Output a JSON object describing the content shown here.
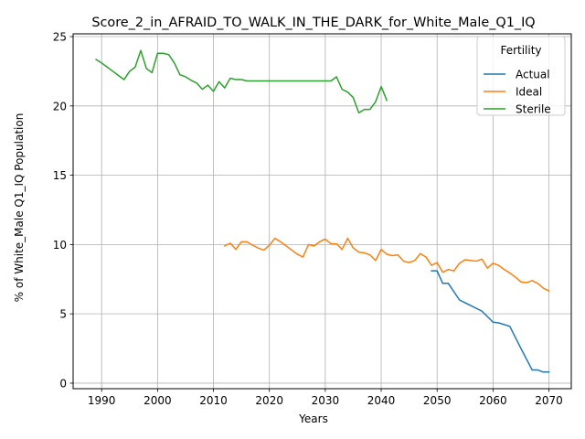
{
  "chart_data": {
    "type": "line",
    "title": "Score_2_in_AFRAID_TO_WALK_IN_THE_DARK_for_White_Male_Q1_IQ",
    "xlabel": "Years",
    "ylabel": "% of White_Male Q1_IQ Population",
    "xlim": [
      1984.9,
      2074.0
    ],
    "ylim": [
      -0.4,
      25.2
    ],
    "xticks": [
      1990,
      2000,
      2010,
      2020,
      2030,
      2040,
      2050,
      2060,
      2070
    ],
    "yticks": [
      0,
      5,
      10,
      15,
      20,
      25
    ],
    "grid": true,
    "legend": {
      "title": "Fertility",
      "placement": "top-right"
    },
    "series": [
      {
        "name": "Actual",
        "color": "#1f77b4",
        "x": [
          2049,
          2050,
          2051,
          2052,
          2054,
          2056,
          2058,
          2060,
          2061,
          2063,
          2065,
          2067,
          2068,
          2069,
          2070
        ],
        "y": [
          8.1,
          8.1,
          7.2,
          7.2,
          6.0,
          5.6,
          5.2,
          4.4,
          4.35,
          4.1,
          2.5,
          0.95,
          0.95,
          0.8,
          0.8
        ]
      },
      {
        "name": "Ideal",
        "color": "#ff7f0e",
        "x": [
          2012,
          2013,
          2014,
          2015,
          2016,
          2017,
          2018,
          2019,
          2020,
          2021,
          2022,
          2023,
          2024,
          2025,
          2026,
          2027,
          2028,
          2029,
          2030,
          2031,
          2032,
          2033,
          2034,
          2035,
          2036,
          2037,
          2038,
          2039,
          2040,
          2041,
          2042,
          2043,
          2044,
          2045,
          2046,
          2047,
          2048,
          2049,
          2050,
          2051,
          2052,
          2053,
          2054,
          2055,
          2056,
          2057,
          2058,
          2059,
          2060,
          2061,
          2062,
          2063,
          2064,
          2065,
          2066,
          2067,
          2068,
          2069,
          2070
        ],
        "y": [
          9.9,
          10.1,
          9.65,
          10.2,
          10.2,
          9.95,
          9.75,
          9.6,
          9.95,
          10.45,
          10.2,
          9.9,
          9.6,
          9.3,
          9.1,
          10.0,
          9.9,
          10.2,
          10.4,
          10.05,
          10.05,
          9.65,
          10.45,
          9.75,
          9.45,
          9.4,
          9.25,
          8.85,
          9.65,
          9.3,
          9.2,
          9.25,
          8.8,
          8.7,
          8.85,
          9.35,
          9.1,
          8.5,
          8.7,
          8.0,
          8.2,
          8.1,
          8.65,
          8.9,
          8.85,
          8.8,
          8.95,
          8.3,
          8.65,
          8.5,
          8.2,
          7.95,
          7.65,
          7.3,
          7.25,
          7.4,
          7.2,
          6.85,
          6.65
        ]
      },
      {
        "name": "Sterile",
        "color": "#2ca02c",
        "x": [
          1989,
          1990,
          1991,
          1992,
          1993,
          1994,
          1995,
          1996,
          1997,
          1998,
          1999,
          2000,
          2001,
          2002,
          2003,
          2004,
          2005,
          2006,
          2007,
          2008,
          2009,
          2010,
          2011,
          2012,
          2013,
          2014,
          2015,
          2016,
          2017,
          2018,
          2019,
          2020,
          2021,
          2022,
          2023,
          2024,
          2025,
          2026,
          2027,
          2028,
          2029,
          2030,
          2031,
          2032,
          2033,
          2034,
          2035,
          2036,
          2037,
          2038,
          2039,
          2040,
          2041
        ],
        "y": [
          23.35,
          23.1,
          22.8,
          22.5,
          22.2,
          21.9,
          22.5,
          22.8,
          24.0,
          22.7,
          22.4,
          23.8,
          23.8,
          23.7,
          23.1,
          22.25,
          22.1,
          21.85,
          21.65,
          21.2,
          21.5,
          21.05,
          21.75,
          21.3,
          22.0,
          21.9,
          21.9,
          21.8,
          21.8,
          21.8,
          21.8,
          21.8,
          21.8,
          21.8,
          21.8,
          21.8,
          21.8,
          21.8,
          21.8,
          21.8,
          21.8,
          21.8,
          21.8,
          22.1,
          21.2,
          21.0,
          20.6,
          19.5,
          19.75,
          19.75,
          20.3,
          21.4,
          20.4
        ]
      }
    ]
  }
}
